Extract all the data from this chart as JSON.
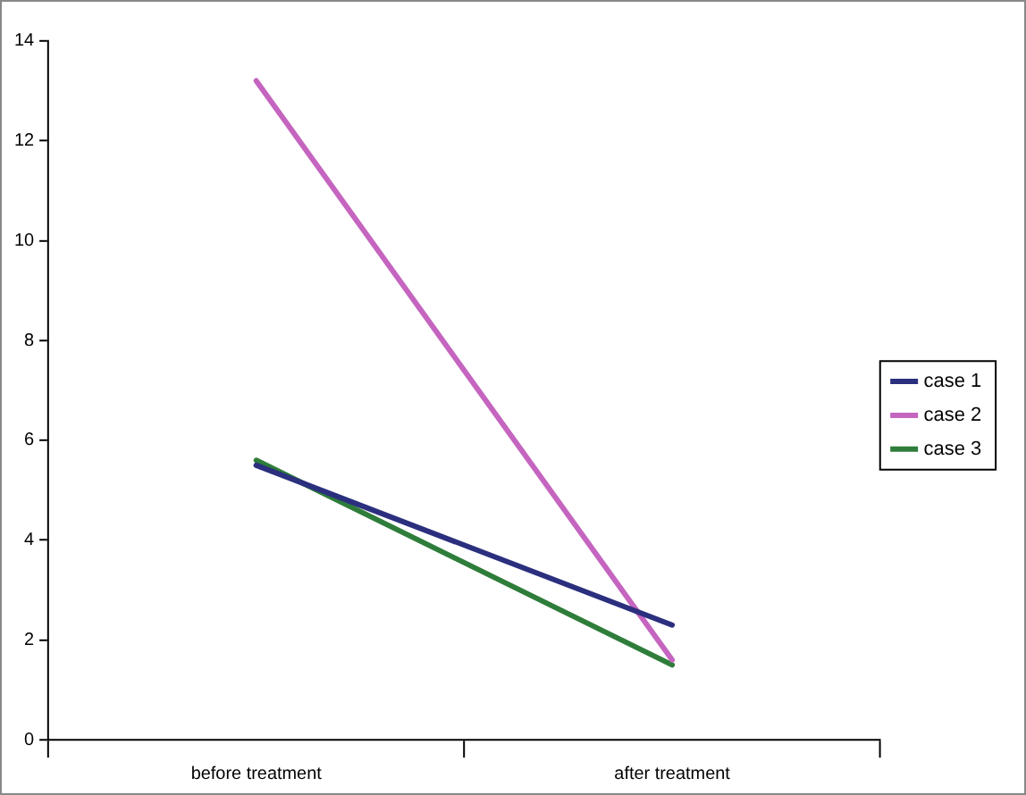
{
  "chart_data": {
    "type": "line",
    "categories": [
      "before treatment",
      "after treatment"
    ],
    "series": [
      {
        "name": "case 1",
        "color": "#2b2f7e",
        "values": [
          5.5,
          2.3
        ]
      },
      {
        "name": "case 2",
        "color": "#c565c0",
        "values": [
          13.2,
          1.6
        ]
      },
      {
        "name": "case 3",
        "color": "#2e7d3a",
        "values": [
          5.6,
          1.5
        ]
      }
    ],
    "ylim": [
      0,
      14
    ],
    "yticks": [
      0,
      2,
      4,
      6,
      8,
      10,
      12,
      14
    ],
    "grid": false,
    "legend": "right",
    "marker": "none",
    "line_style": "solid"
  }
}
